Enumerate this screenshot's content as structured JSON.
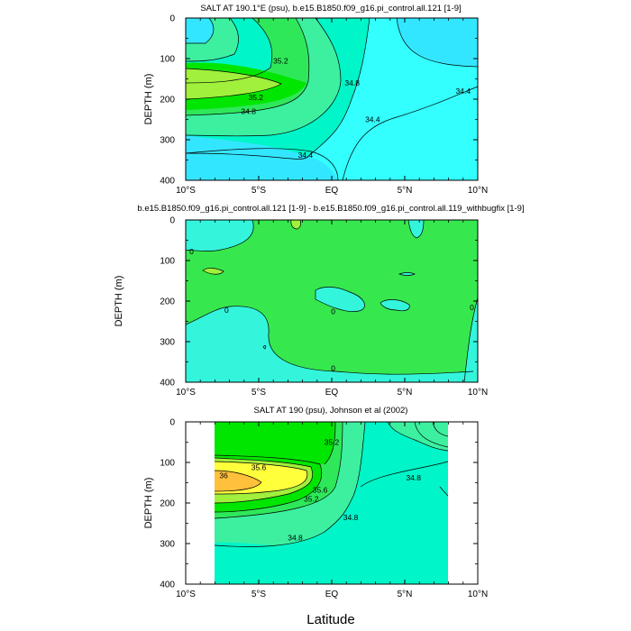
{
  "figure": {
    "xlabel": "Latitude"
  },
  "chart_data": [
    {
      "type": "contour",
      "title": "SALT AT 190.1°E (psu), b.e15.B1850.f09_g16.pi_control.all.121 [1-9]",
      "ylabel": "DEPTH (m)",
      "xlim": [
        -10,
        10
      ],
      "ylim": [
        400,
        0
      ],
      "x_ticks": [
        -10,
        -5,
        0,
        5,
        10
      ],
      "x_tick_labels": [
        "10°S",
        "5°S",
        "EQ",
        "5°N",
        "10°N"
      ],
      "y_ticks": [
        0,
        100,
        200,
        300,
        400
      ],
      "y_tick_labels": [
        "0",
        "100",
        "200",
        "300",
        "400"
      ],
      "contour_labels": [
        {
          "text": "35.2",
          "x": -3.5,
          "y": 105
        },
        {
          "text": "35.2",
          "x": -5.2,
          "y": 195
        },
        {
          "text": "34.8",
          "x": 1.4,
          "y": 160
        },
        {
          "text": "34.8",
          "x": -5.7,
          "y": 230
        },
        {
          "text": "34.4",
          "x": 9.0,
          "y": 180
        },
        {
          "text": "34.4",
          "x": 2.8,
          "y": 250
        },
        {
          "text": "34.4",
          "x": -1.8,
          "y": 338
        }
      ]
    },
    {
      "type": "contour",
      "title": "b.e15.B1850.f09_g16.pi_control.all.121 [1-9] - b.e15.B1850.f09_g16.pi_control.all.119_withbugfix [1-9]",
      "ylabel": "DEPTH (m)",
      "xlim": [
        -10,
        10
      ],
      "ylim": [
        400,
        0
      ],
      "x_ticks": [
        -10,
        -5,
        0,
        5,
        10
      ],
      "x_tick_labels": [
        "10°S",
        "5°S",
        "EQ",
        "5°N",
        "10°N"
      ],
      "y_ticks": [
        0,
        100,
        200,
        300,
        400
      ],
      "y_tick_labels": [
        "0",
        "100",
        "200",
        "300",
        "400"
      ],
      "contour_labels": [
        {
          "text": "0",
          "x": -9.6,
          "y": 78
        },
        {
          "text": "0",
          "x": -7.2,
          "y": 222
        },
        {
          "text": "0",
          "x": 0.1,
          "y": 225
        },
        {
          "text": "0",
          "x": 0.1,
          "y": 365
        },
        {
          "text": "0",
          "x": 9.6,
          "y": 215
        }
      ]
    },
    {
      "type": "contour",
      "title": "SALT AT 190 (psu), Johnson et al (2002)",
      "ylabel": "DEPTH (m)",
      "xlim": [
        -10,
        10
      ],
      "ylim": [
        400,
        0
      ],
      "x_ticks": [
        -10,
        -5,
        0,
        5,
        10
      ],
      "x_tick_labels": [
        "10°S",
        "5°S",
        "EQ",
        "5°N",
        "10°N"
      ],
      "y_ticks": [
        0,
        100,
        200,
        300,
        400
      ],
      "y_tick_labels": [
        "0",
        "100",
        "200",
        "300",
        "400"
      ],
      "data_extent_x": [
        -8,
        8
      ],
      "contour_labels": [
        {
          "text": "35.2",
          "x": 0,
          "y": 50
        },
        {
          "text": "35.6",
          "x": -5,
          "y": 112
        },
        {
          "text": "36",
          "x": -7.4,
          "y": 132
        },
        {
          "text": "35.6",
          "x": -0.8,
          "y": 168
        },
        {
          "text": "35.2",
          "x": -1.4,
          "y": 190
        },
        {
          "text": "34.8",
          "x": 1.3,
          "y": 235
        },
        {
          "text": "34.8",
          "x": 5.6,
          "y": 138
        },
        {
          "text": "34.8",
          "x": -2.5,
          "y": 285
        }
      ]
    }
  ],
  "colors": {
    "cyan": "#33ffff",
    "aqua": "#33e6ff",
    "teal_green": "#00f5c8",
    "mint": "#3cf0a0",
    "green": "#2ee85a",
    "bright_green": "#00e600",
    "lime": "#a0f03c",
    "yellow": "#ffff3c",
    "orange": "#ffc03c",
    "diff_green": "#36e84e",
    "diff_cyan": "#33f5dc"
  }
}
